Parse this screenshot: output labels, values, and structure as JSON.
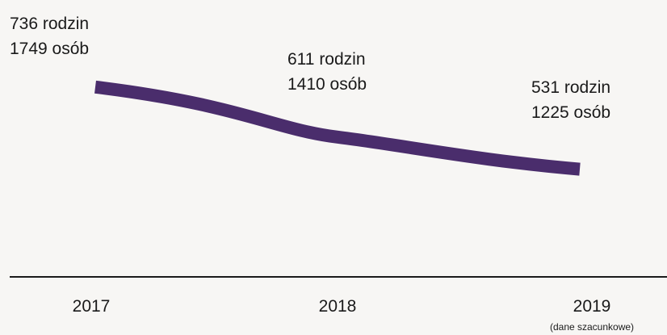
{
  "chart_data": {
    "type": "line",
    "title": "",
    "xlabel": "",
    "ylabel": "",
    "x": [
      "2017",
      "2018",
      "2019"
    ],
    "x_notes": [
      "",
      "",
      "(dane szacunkowe)"
    ],
    "series": [
      {
        "values": [
          736,
          611,
          531
        ]
      }
    ],
    "secondary_values": [
      1749,
      1410,
      1225
    ],
    "labels": [
      [
        "736 rodzin",
        "1749 osób"
      ],
      [
        "611 rodzin",
        "1410 osób"
      ],
      [
        "531 rodzin",
        "1225 osób"
      ]
    ],
    "ylim": [
      0,
      1000
    ],
    "grid": false,
    "legend": "none",
    "line_color": "#4a2d6c",
    "axis_color": "#1a1a1a"
  }
}
